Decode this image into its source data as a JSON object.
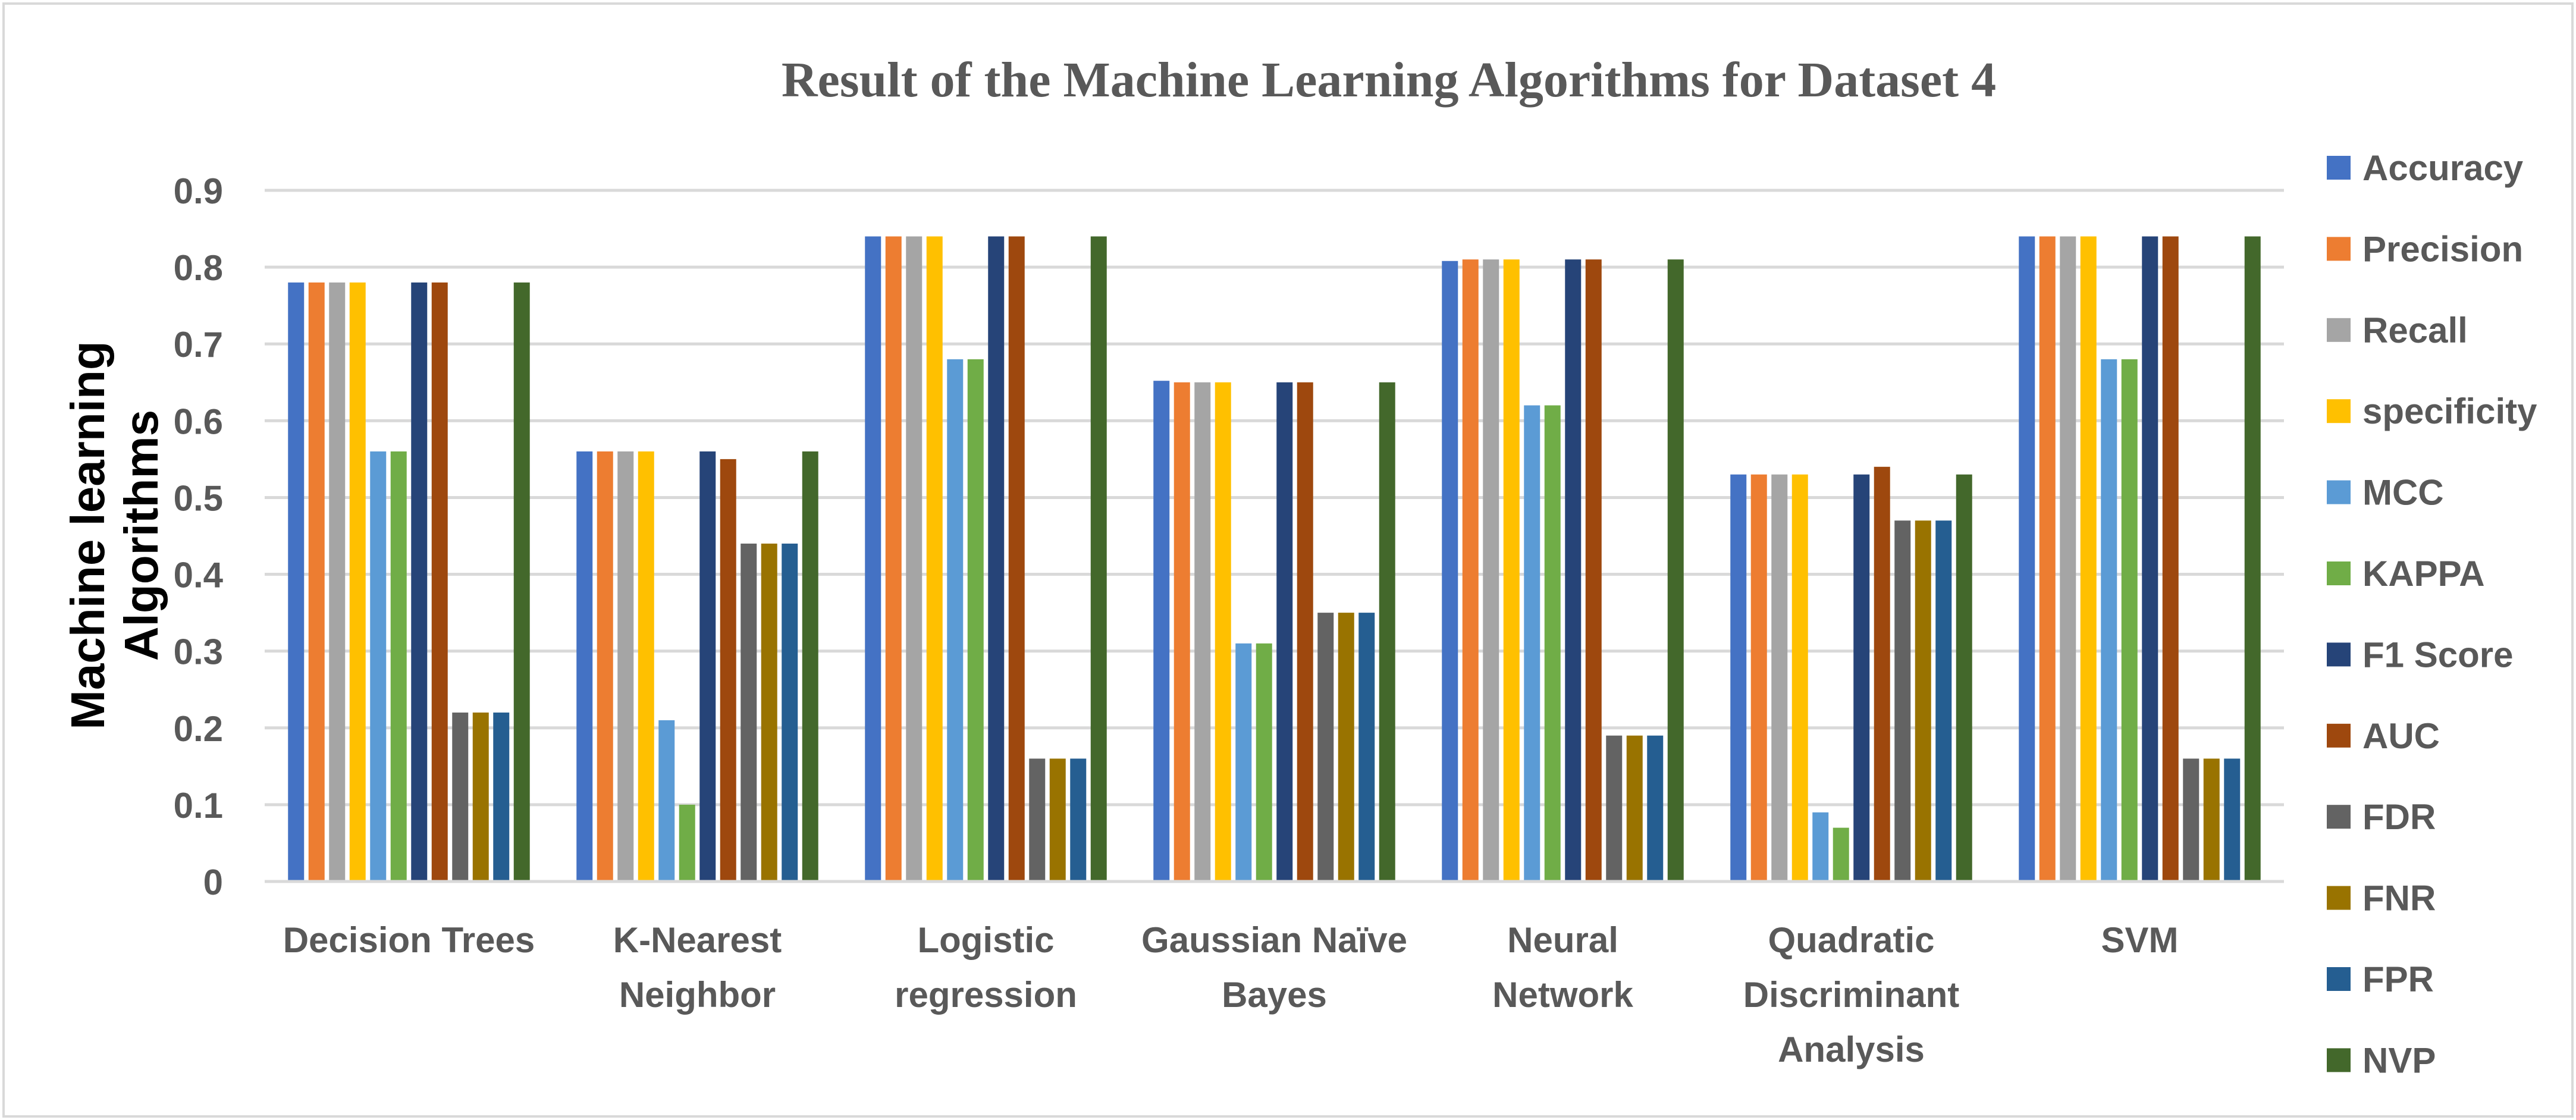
{
  "chart_data": {
    "type": "bar",
    "title": "Result of  the Machine Learning Algorithms for Dataset 4",
    "xlabel": "",
    "ylabel_lines": [
      "Machine learning",
      "Algorithms"
    ],
    "ylim": [
      0,
      0.9
    ],
    "yticks": [
      "0",
      "0.1",
      "0.2",
      "0.3",
      "0.4",
      "0.5",
      "0.6",
      "0.7",
      "0.8",
      "0.9"
    ],
    "grid": true,
    "legend_position": "right",
    "categories": [
      [
        "Decision Trees"
      ],
      [
        "K-Nearest",
        "Neighbor"
      ],
      [
        "Logistic",
        "regression"
      ],
      [
        "Gaussian Naïve",
        "Bayes"
      ],
      [
        "Neural",
        "Network"
      ],
      [
        "Quadratic",
        "Discriminant",
        "Analysis"
      ],
      [
        "SVM"
      ]
    ],
    "series": [
      {
        "name": "Accuracy",
        "color": "#4472C4",
        "values": [
          0.78,
          0.56,
          0.84,
          0.652,
          0.808,
          0.53,
          0.84
        ]
      },
      {
        "name": "Precision",
        "color": "#ED7D31",
        "values": [
          0.78,
          0.56,
          0.84,
          0.65,
          0.81,
          0.53,
          0.84
        ]
      },
      {
        "name": "Recall",
        "color": "#A5A5A5",
        "values": [
          0.78,
          0.56,
          0.84,
          0.65,
          0.81,
          0.53,
          0.84
        ]
      },
      {
        "name": "specificity",
        "color": "#FFC000",
        "values": [
          0.78,
          0.56,
          0.84,
          0.65,
          0.81,
          0.53,
          0.84
        ]
      },
      {
        "name": "MCC",
        "color": "#5B9BD5",
        "values": [
          0.56,
          0.21,
          0.68,
          0.31,
          0.62,
          0.09,
          0.68
        ]
      },
      {
        "name": "KAPPA",
        "color": "#70AD47",
        "values": [
          0.56,
          0.1,
          0.68,
          0.31,
          0.62,
          0.07,
          0.68
        ]
      },
      {
        "name": "F1 Score",
        "color": "#264478",
        "values": [
          0.78,
          0.56,
          0.84,
          0.65,
          0.81,
          0.53,
          0.84
        ]
      },
      {
        "name": "AUC",
        "color": "#9E480E",
        "values": [
          0.78,
          0.55,
          0.84,
          0.65,
          0.81,
          0.54,
          0.84
        ]
      },
      {
        "name": "FDR",
        "color": "#636363",
        "values": [
          0.22,
          0.44,
          0.16,
          0.35,
          0.19,
          0.47,
          0.16
        ]
      },
      {
        "name": "FNR",
        "color": "#997300",
        "values": [
          0.22,
          0.44,
          0.16,
          0.35,
          0.19,
          0.47,
          0.16
        ]
      },
      {
        "name": "FPR",
        "color": "#255E91",
        "values": [
          0.22,
          0.44,
          0.16,
          0.35,
          0.19,
          0.47,
          0.16
        ]
      },
      {
        "name": "NVP",
        "color": "#43682B",
        "values": [
          0.78,
          0.56,
          0.84,
          0.65,
          0.81,
          0.53,
          0.84
        ]
      }
    ]
  }
}
